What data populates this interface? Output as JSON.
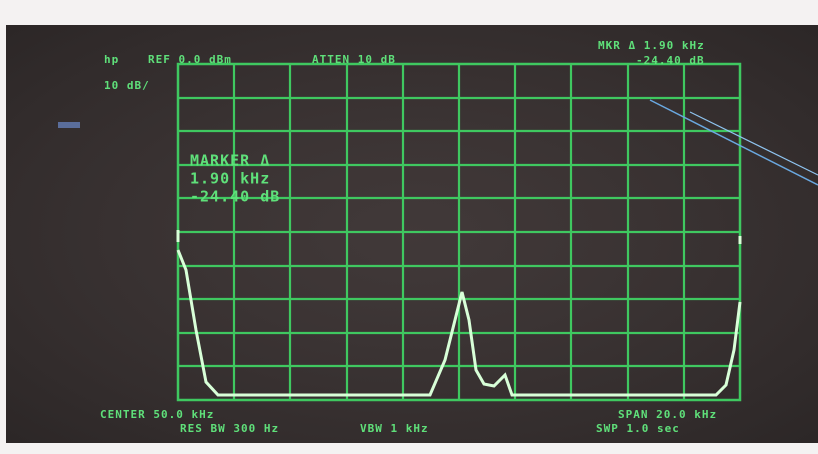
{
  "screen": {
    "top_left": [
      "hp",
      "REF 0.0 dBm",
      "ATTEN 10 dB"
    ],
    "scale": "10 dB/",
    "marker_readout": [
      "MKR Δ 1.90 kHz",
      "-24.40 dB"
    ],
    "marker_block": [
      "MARKER Δ",
      "1.90 kHz",
      "-24.40 dB"
    ],
    "bottom_left": [
      "CENTER 50.0 kHz",
      "RES BW 300 Hz",
      "VBW 1 kHz"
    ],
    "bottom_right": [
      "SPAN 20.0 kHz",
      "SWP 1.0 sec"
    ]
  }
}
